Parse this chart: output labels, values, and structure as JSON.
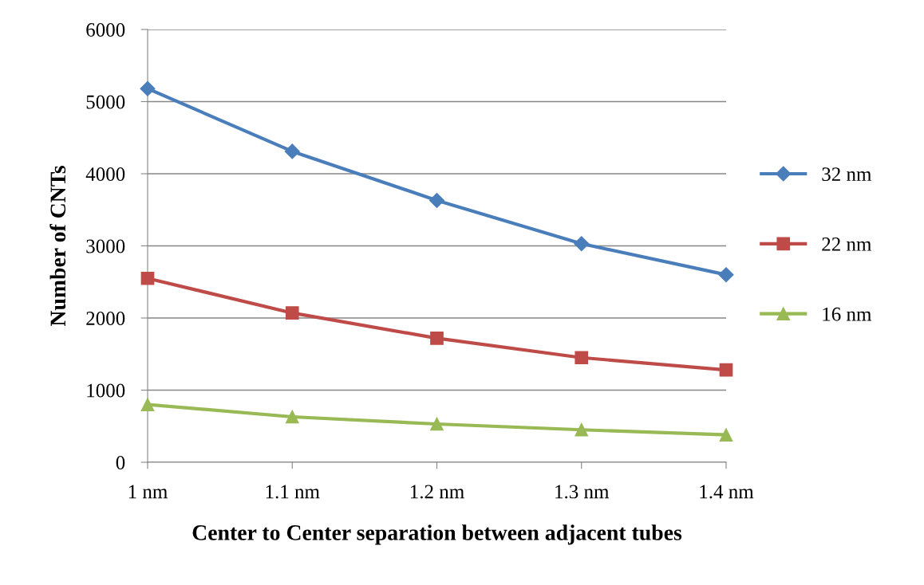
{
  "chart_data": {
    "type": "line",
    "xlabel": "Center to Center separation between adjacent tubes",
    "ylabel": "Number of CNTs",
    "categories": [
      "1 nm",
      "1.1 nm",
      "1.2 nm",
      "1.3 nm",
      "1.4 nm"
    ],
    "series": [
      {
        "name": "32 nm",
        "color": "#4a7ebb",
        "marker": "diamond",
        "values": [
          5180,
          4310,
          3630,
          3030,
          2600
        ]
      },
      {
        "name": "22 nm",
        "color": "#be4b48",
        "marker": "square",
        "values": [
          2550,
          2070,
          1720,
          1450,
          1280
        ]
      },
      {
        "name": "16 nm",
        "color": "#98b954",
        "marker": "triangle",
        "values": [
          800,
          630,
          530,
          450,
          380
        ]
      }
    ],
    "ylim": [
      0,
      6000
    ],
    "yticks": [
      0,
      1000,
      2000,
      3000,
      4000,
      5000,
      6000
    ],
    "grid": "y",
    "legend": "right",
    "line_style": "solid"
  }
}
